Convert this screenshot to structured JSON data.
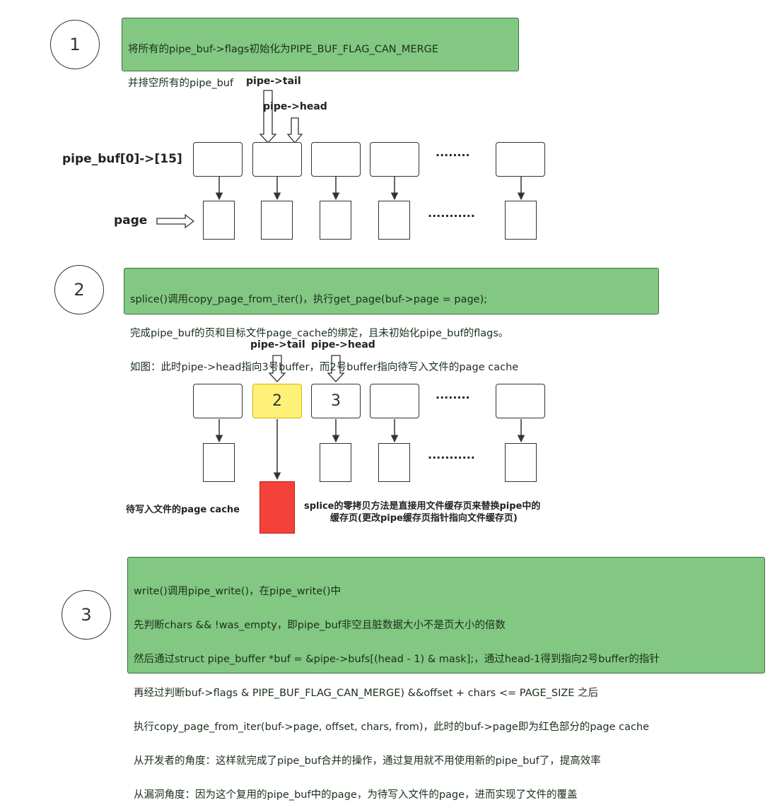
{
  "step1": {
    "number": "1",
    "note_lines": [
      "将所有的pipe_buf->flags初始化为PIPE_BUF_FLAG_CAN_MERGE",
      "并排空所有的pipe_buf"
    ],
    "tail_label": "pipe->tail",
    "head_label": "pipe->head",
    "buf_label": "pipe_buf[0]->[15]",
    "page_label": "page",
    "dots_buf": "········",
    "dots_page": "···········"
  },
  "step2": {
    "number": "2",
    "note_lines": [
      "splice()调用copy_page_from_iter()，执行get_page(buf->page = page);",
      "完成pipe_buf的页和目标文件page_cache的绑定，且未初始化pipe_buf的flags。",
      "如图：此时pipe->head指向3号buffer，而2号buffer指向待写入文件的page cache"
    ],
    "tail_label": "pipe->tail",
    "head_label": "pipe->head",
    "box2_label": "2",
    "box3_label": "3",
    "dots_buf": "········",
    "dots_page": "···········",
    "cache_label": "待写入文件的page cache",
    "explain_line1": "splice的零拷贝方法是直接用文件缓存页来替换pipe中的",
    "explain_line2": "缓存页(更改pipe缓存页指针指向文件缓存页)"
  },
  "step3": {
    "number": "3",
    "note_lines": [
      "write()调用pipe_write()，在pipe_write()中",
      "先判断chars && !was_empty，即pipe_buf非空且脏数据大小不是页大小的倍数",
      "然后通过struct pipe_buffer *buf = &pipe->bufs[(head - 1) & mask];，通过head-1得到指向2号buffer的指针",
      "再经过判断buf->flags & PIPE_BUF_FLAG_CAN_MERGE) &&offset + chars <= PAGE_SIZE 之后",
      "执行copy_page_from_iter(buf->page, offset, chars, from)，此时的buf->page即为红色部分的page cache",
      "从开发者的角度：这样就完成了pipe_buf合并的操作，通过复用就不用使用新的pipe_buf了，提高效率",
      "从漏洞角度：因为这个复用的pipe_buf中的page，为待写入文件的page，进而实现了文件的覆盖"
    ]
  },
  "colors": {
    "note_fill": "#82c882",
    "highlight_buffer": "#fff07a",
    "page_cache": "#f4423a"
  }
}
